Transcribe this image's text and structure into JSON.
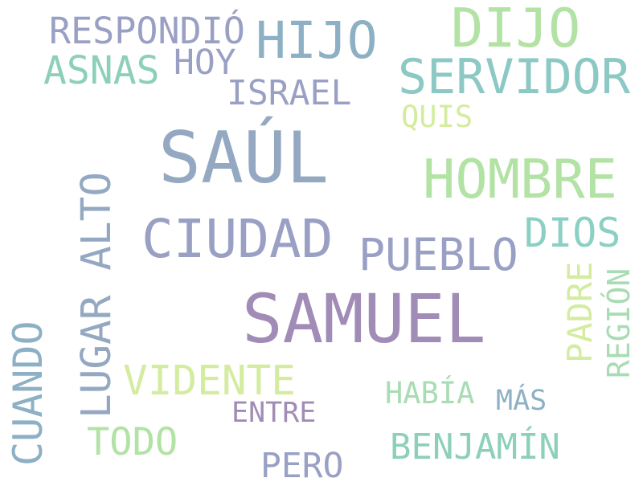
{
  "words": [
    {
      "id": "saul",
      "text": "SAÚL",
      "color": "#94a8c2"
    },
    {
      "id": "samuel",
      "text": "SAMUEL",
      "color": "#a08cb6"
    },
    {
      "id": "hombre",
      "text": "HOMBRE",
      "color": "#b2e2a4"
    },
    {
      "id": "ciudad",
      "text": "CIUDAD",
      "color": "#9aa0c4"
    },
    {
      "id": "dijo",
      "text": "DIJO",
      "color": "#b2e2a4"
    },
    {
      "id": "servidor",
      "text": "SERVIDOR",
      "color": "#8cc8c4"
    },
    {
      "id": "hijo",
      "text": "HIJO",
      "color": "#8eb0c4"
    },
    {
      "id": "lugar-alto",
      "text": "LUGAR ALTO",
      "color": "#94a8c2"
    },
    {
      "id": "pueblo",
      "text": "PUEBLO",
      "color": "#9aa0c4"
    },
    {
      "id": "vidente",
      "text": "VIDENTE",
      "color": "#d4eca0"
    },
    {
      "id": "cuando",
      "text": "CUANDO",
      "color": "#8eb0c4"
    },
    {
      "id": "respondio",
      "text": "RESPONDIÓ",
      "color": "#9aa0c4"
    },
    {
      "id": "asnas",
      "text": "ASNAS",
      "color": "#8cd0b8"
    },
    {
      "id": "dios",
      "text": "DIOS",
      "color": "#8cd0c4"
    },
    {
      "id": "benjamin",
      "text": "BENJAMÍN",
      "color": "#8cd0b8"
    },
    {
      "id": "todo",
      "text": "TODO",
      "color": "#b2e2a4"
    },
    {
      "id": "padre",
      "text": "PADRE",
      "color": "#d4eca0"
    },
    {
      "id": "region",
      "text": "REGIÓN",
      "color": "#a8dcb4"
    },
    {
      "id": "israel",
      "text": "ISRAEL",
      "color": "#9aa0c4"
    },
    {
      "id": "hoy",
      "text": "HOY",
      "color": "#9aa0c4"
    },
    {
      "id": "pero",
      "text": "PERO",
      "color": "#9aa0c4"
    },
    {
      "id": "quis",
      "text": "QUIS",
      "color": "#d4eca0"
    },
    {
      "id": "habia",
      "text": "HABÍA",
      "color": "#a8dcb4"
    },
    {
      "id": "entre",
      "text": "ENTRE",
      "color": "#a08cb6"
    },
    {
      "id": "mas",
      "text": "MÁS",
      "color": "#8eb0c4"
    }
  ]
}
